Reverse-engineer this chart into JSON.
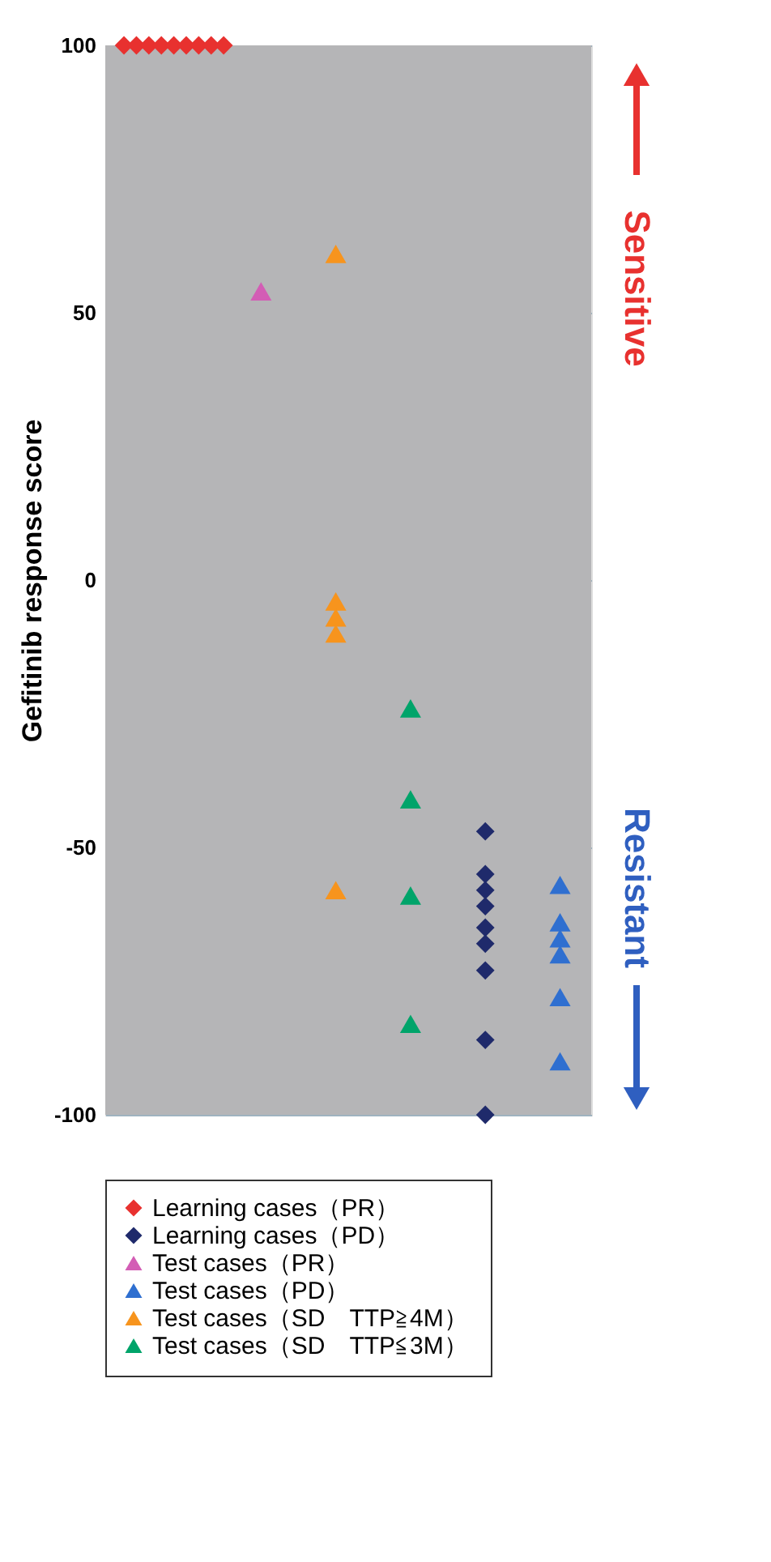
{
  "chart_data": {
    "type": "scatter",
    "ylabel": "Gefitinib response score",
    "categories": [
      null,
      null,
      null,
      null,
      null,
      null,
      null,
      null,
      null,
      null,
      null,
      null,
      null,
      null,
      null,
      null,
      null,
      null,
      null,
      null,
      null,
      null,
      null,
      null,
      null,
      null,
      null,
      null,
      null,
      null,
      null,
      null,
      null,
      null,
      null,
      null,
      null,
      null,
      null
    ],
    "ylim": [
      -100,
      100
    ],
    "yticks": [
      100,
      50,
      0,
      -50,
      -100
    ],
    "tick_labels": "y",
    "grid": "y",
    "legend": "bottom",
    "annotations": [
      "Sensitive",
      "Resistant"
    ],
    "series": [
      {
        "name": "Learning cases（PR）",
        "color": "#e8312f",
        "marker": "diamond",
        "values": [
          null,
          100,
          100,
          100,
          100,
          100,
          100,
          100,
          100,
          100,
          null,
          null,
          null,
          null,
          null,
          null,
          null,
          null,
          null,
          null,
          null,
          null,
          null,
          null,
          null,
          null,
          null,
          null,
          null,
          null,
          null,
          null,
          null,
          null,
          null,
          null,
          null,
          null,
          null
        ]
      },
      {
        "name": "Learning cases（PD）",
        "color": "#1f2a6b",
        "marker": "diamond",
        "values": [
          null,
          null,
          null,
          null,
          null,
          null,
          null,
          null,
          null,
          null,
          null,
          null,
          null,
          null,
          null,
          null,
          null,
          null,
          null,
          null,
          null,
          null,
          null,
          null,
          null,
          null,
          null,
          null,
          null,
          null,
          -47,
          null,
          null,
          null,
          null,
          null,
          null,
          null,
          null
        ]
      },
      {
        "name": "Test cases（PR）",
        "color": "#d35db5",
        "marker": "triangle",
        "values": [
          null,
          null,
          null,
          null,
          null,
          null,
          null,
          null,
          null,
          null,
          null,
          null,
          54,
          null,
          null,
          null,
          null,
          null,
          null,
          null,
          null,
          null,
          null,
          null,
          null,
          null,
          null,
          null,
          null,
          null,
          null,
          null,
          null,
          null,
          null,
          null,
          null,
          null,
          null
        ]
      },
      {
        "name": "Test cases（PD）",
        "color": "#2f6fd0",
        "marker": "triangle",
        "values": [
          null,
          null,
          null,
          null,
          null,
          null,
          null,
          null,
          null,
          null,
          null,
          null,
          null,
          null,
          null,
          null,
          null,
          null,
          null,
          null,
          null,
          null,
          null,
          null,
          null,
          null,
          null,
          null,
          null,
          null,
          null,
          null,
          null,
          null,
          null,
          null,
          -57,
          null,
          null
        ]
      },
      {
        "name": "Test cases（SD　TTP≧4M）",
        "color": "#f7941d",
        "marker": "triangle",
        "values": [
          null,
          null,
          null,
          null,
          null,
          null,
          null,
          null,
          null,
          null,
          null,
          null,
          null,
          null,
          null,
          null,
          null,
          null,
          61,
          null,
          null,
          null,
          null,
          null,
          null,
          null,
          null,
          null,
          null,
          null,
          null,
          null,
          null,
          null,
          null,
          null,
          null,
          null,
          null
        ]
      },
      {
        "name": "Test cases（SD　TTP≦3M）",
        "color": "#00a46a",
        "marker": "triangle",
        "values": [
          null,
          null,
          null,
          null,
          null,
          null,
          null,
          null,
          null,
          null,
          null,
          null,
          null,
          null,
          null,
          null,
          null,
          null,
          null,
          null,
          null,
          null,
          null,
          null,
          -24,
          null,
          null,
          null,
          null,
          null,
          null,
          null,
          null,
          null,
          null,
          null,
          null,
          null,
          null
        ]
      },
      {
        "color": "#1f2a6b",
        "marker": "diamond",
        "values": [
          null,
          null,
          null,
          null,
          null,
          null,
          null,
          null,
          null,
          null,
          null,
          null,
          null,
          null,
          null,
          null,
          null,
          null,
          null,
          null,
          null,
          null,
          null,
          null,
          null,
          null,
          null,
          null,
          null,
          null,
          -55,
          null,
          null,
          null,
          null,
          null,
          null,
          null,
          null
        ]
      },
      {
        "color": "#1f2a6b",
        "marker": "diamond",
        "values": [
          null,
          null,
          null,
          null,
          null,
          null,
          null,
          null,
          null,
          null,
          null,
          null,
          null,
          null,
          null,
          null,
          null,
          null,
          null,
          null,
          null,
          null,
          null,
          null,
          null,
          null,
          null,
          null,
          null,
          null,
          -58,
          null,
          null,
          null,
          null,
          null,
          null,
          null,
          null
        ]
      },
      {
        "color": "#1f2a6b",
        "marker": "diamond",
        "values": [
          null,
          null,
          null,
          null,
          null,
          null,
          null,
          null,
          null,
          null,
          null,
          null,
          null,
          null,
          null,
          null,
          null,
          null,
          null,
          null,
          null,
          null,
          null,
          null,
          null,
          null,
          null,
          null,
          null,
          null,
          -61,
          null,
          null,
          null,
          null,
          null,
          null,
          null,
          null
        ]
      },
      {
        "color": "#1f2a6b",
        "marker": "diamond",
        "values": [
          null,
          null,
          null,
          null,
          null,
          null,
          null,
          null,
          null,
          null,
          null,
          null,
          null,
          null,
          null,
          null,
          null,
          null,
          null,
          null,
          null,
          null,
          null,
          null,
          null,
          null,
          null,
          null,
          null,
          null,
          -65,
          null,
          null,
          null,
          null,
          null,
          null,
          null,
          null
        ]
      },
      {
        "color": "#1f2a6b",
        "marker": "diamond",
        "values": [
          null,
          null,
          null,
          null,
          null,
          null,
          null,
          null,
          null,
          null,
          null,
          null,
          null,
          null,
          null,
          null,
          null,
          null,
          null,
          null,
          null,
          null,
          null,
          null,
          null,
          null,
          null,
          null,
          null,
          null,
          -68,
          null,
          null,
          null,
          null,
          null,
          null,
          null,
          null
        ]
      },
      {
        "color": "#1f2a6b",
        "marker": "diamond",
        "values": [
          null,
          null,
          null,
          null,
          null,
          null,
          null,
          null,
          null,
          null,
          null,
          null,
          null,
          null,
          null,
          null,
          null,
          null,
          null,
          null,
          null,
          null,
          null,
          null,
          null,
          null,
          null,
          null,
          null,
          null,
          -73,
          null,
          null,
          null,
          null,
          null,
          null,
          null,
          null
        ]
      },
      {
        "color": "#1f2a6b",
        "marker": "diamond",
        "values": [
          null,
          null,
          null,
          null,
          null,
          null,
          null,
          null,
          null,
          null,
          null,
          null,
          null,
          null,
          null,
          null,
          null,
          null,
          null,
          null,
          null,
          null,
          null,
          null,
          null,
          null,
          null,
          null,
          null,
          null,
          -86,
          null,
          null,
          null,
          null,
          null,
          null,
          null,
          null
        ]
      },
      {
        "color": "#1f2a6b",
        "marker": "diamond",
        "values": [
          null,
          null,
          null,
          null,
          null,
          null,
          null,
          null,
          null,
          null,
          null,
          null,
          null,
          null,
          null,
          null,
          null,
          null,
          null,
          null,
          null,
          null,
          null,
          null,
          null,
          null,
          null,
          null,
          null,
          null,
          -100,
          null,
          null,
          null,
          null,
          null,
          null,
          null,
          null
        ]
      },
      {
        "color": "#2f6fd0",
        "marker": "triangle",
        "values": [
          null,
          null,
          null,
          null,
          null,
          null,
          null,
          null,
          null,
          null,
          null,
          null,
          null,
          null,
          null,
          null,
          null,
          null,
          null,
          null,
          null,
          null,
          null,
          null,
          null,
          null,
          null,
          null,
          null,
          null,
          null,
          null,
          null,
          null,
          null,
          null,
          -64,
          null,
          null
        ]
      },
      {
        "color": "#2f6fd0",
        "marker": "triangle",
        "values": [
          null,
          null,
          null,
          null,
          null,
          null,
          null,
          null,
          null,
          null,
          null,
          null,
          null,
          null,
          null,
          null,
          null,
          null,
          null,
          null,
          null,
          null,
          null,
          null,
          null,
          null,
          null,
          null,
          null,
          null,
          null,
          null,
          null,
          null,
          null,
          null,
          -67,
          null,
          null
        ]
      },
      {
        "color": "#2f6fd0",
        "marker": "triangle",
        "values": [
          null,
          null,
          null,
          null,
          null,
          null,
          null,
          null,
          null,
          null,
          null,
          null,
          null,
          null,
          null,
          null,
          null,
          null,
          null,
          null,
          null,
          null,
          null,
          null,
          null,
          null,
          null,
          null,
          null,
          null,
          null,
          null,
          null,
          null,
          null,
          null,
          -70,
          null,
          null
        ]
      },
      {
        "color": "#2f6fd0",
        "marker": "triangle",
        "values": [
          null,
          null,
          null,
          null,
          null,
          null,
          null,
          null,
          null,
          null,
          null,
          null,
          null,
          null,
          null,
          null,
          null,
          null,
          null,
          null,
          null,
          null,
          null,
          null,
          null,
          null,
          null,
          null,
          null,
          null,
          null,
          null,
          null,
          null,
          null,
          null,
          -78,
          null,
          null
        ]
      },
      {
        "color": "#2f6fd0",
        "marker": "triangle",
        "values": [
          null,
          null,
          null,
          null,
          null,
          null,
          null,
          null,
          null,
          null,
          null,
          null,
          null,
          null,
          null,
          null,
          null,
          null,
          null,
          null,
          null,
          null,
          null,
          null,
          null,
          null,
          null,
          null,
          null,
          null,
          null,
          null,
          null,
          null,
          null,
          null,
          -90,
          null,
          null
        ]
      },
      {
        "color": "#f7941d",
        "marker": "triangle",
        "values": [
          null,
          null,
          null,
          null,
          null,
          null,
          null,
          null,
          null,
          null,
          null,
          null,
          null,
          null,
          null,
          null,
          null,
          null,
          -4,
          null,
          null,
          null,
          null,
          null,
          null,
          null,
          null,
          null,
          null,
          null,
          null,
          null,
          null,
          null,
          null,
          null,
          null,
          null,
          null
        ]
      },
      {
        "color": "#f7941d",
        "marker": "triangle",
        "values": [
          null,
          null,
          null,
          null,
          null,
          null,
          null,
          null,
          null,
          null,
          null,
          null,
          null,
          null,
          null,
          null,
          null,
          null,
          -7,
          null,
          null,
          null,
          null,
          null,
          null,
          null,
          null,
          null,
          null,
          null,
          null,
          null,
          null,
          null,
          null,
          null,
          null,
          null,
          null
        ]
      },
      {
        "color": "#f7941d",
        "marker": "triangle",
        "values": [
          null,
          null,
          null,
          null,
          null,
          null,
          null,
          null,
          null,
          null,
          null,
          null,
          null,
          null,
          null,
          null,
          null,
          null,
          -10,
          null,
          null,
          null,
          null,
          null,
          null,
          null,
          null,
          null,
          null,
          null,
          null,
          null,
          null,
          null,
          null,
          null,
          null,
          null,
          null
        ]
      },
      {
        "color": "#f7941d",
        "marker": "triangle",
        "values": [
          null,
          null,
          null,
          null,
          null,
          null,
          null,
          null,
          null,
          null,
          null,
          null,
          null,
          null,
          null,
          null,
          null,
          null,
          -58,
          null,
          null,
          null,
          null,
          null,
          null,
          null,
          null,
          null,
          null,
          null,
          null,
          null,
          null,
          null,
          null,
          null,
          null,
          null,
          null
        ]
      },
      {
        "color": "#00a46a",
        "marker": "triangle",
        "values": [
          null,
          null,
          null,
          null,
          null,
          null,
          null,
          null,
          null,
          null,
          null,
          null,
          null,
          null,
          null,
          null,
          null,
          null,
          null,
          null,
          null,
          null,
          null,
          null,
          -41,
          null,
          null,
          null,
          null,
          null,
          null,
          null,
          null,
          null,
          null,
          null,
          null,
          null,
          null
        ]
      },
      {
        "color": "#00a46a",
        "marker": "triangle",
        "values": [
          null,
          null,
          null,
          null,
          null,
          null,
          null,
          null,
          null,
          null,
          null,
          null,
          null,
          null,
          null,
          null,
          null,
          null,
          null,
          null,
          null,
          null,
          null,
          null,
          -59,
          null,
          null,
          null,
          null,
          null,
          null,
          null,
          null,
          null,
          null,
          null,
          null,
          null,
          null
        ]
      },
      {
        "color": "#00a46a",
        "marker": "triangle",
        "values": [
          null,
          null,
          null,
          null,
          null,
          null,
          null,
          null,
          null,
          null,
          null,
          null,
          null,
          null,
          null,
          null,
          null,
          null,
          null,
          null,
          null,
          null,
          null,
          null,
          -83,
          null,
          null,
          null,
          null,
          null,
          null,
          null,
          null,
          null,
          null,
          null,
          null,
          null,
          null
        ]
      }
    ]
  }
}
